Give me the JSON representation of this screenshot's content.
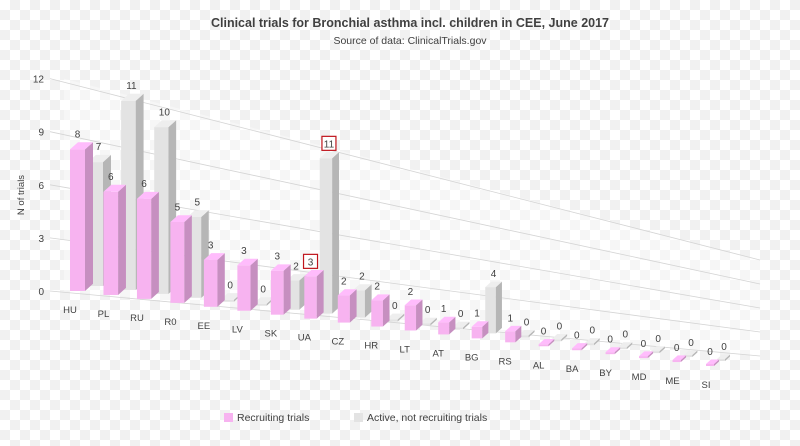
{
  "chart_data": {
    "type": "bar",
    "title": "Clinical trials for Bronchial asthma incl. children in CEE, June 2017",
    "subtitle": "Source of data: ClinicalTrials.gov",
    "ylabel": "N of trials",
    "xlabel": "",
    "ylim": [
      0,
      12
    ],
    "yticks": [
      0,
      3,
      6,
      9,
      12
    ],
    "categories": [
      "HU",
      "PL",
      "RU",
      "R0",
      "EE",
      "LV",
      "SK",
      "UA",
      "CZ",
      "HR",
      "LT",
      "AT",
      "BG",
      "RS",
      "AL",
      "BA",
      "BY",
      "MD",
      "ME",
      "SI"
    ],
    "series": [
      {
        "name": "Recruiting trials",
        "color": "#f7b3f0",
        "values": [
          8,
          6,
          6,
          5,
          3,
          3,
          3,
          3,
          2,
          2,
          2,
          1,
          1,
          1,
          0,
          0,
          0,
          0,
          0,
          0
        ]
      },
      {
        "name": "Active, not recruiting trials",
        "color": "#e3e3e3",
        "values": [
          7,
          11,
          10,
          5,
          0,
          0,
          2,
          11,
          2,
          0,
          0,
          0,
          4,
          0,
          0,
          0,
          0,
          0,
          0,
          0
        ]
      }
    ],
    "highlighted_labels": [
      {
        "series": 0,
        "category": "UA"
      },
      {
        "series": 1,
        "category": "UA"
      }
    ],
    "legend_position": "bottom",
    "grid": true,
    "projection": "3d-perspective"
  }
}
